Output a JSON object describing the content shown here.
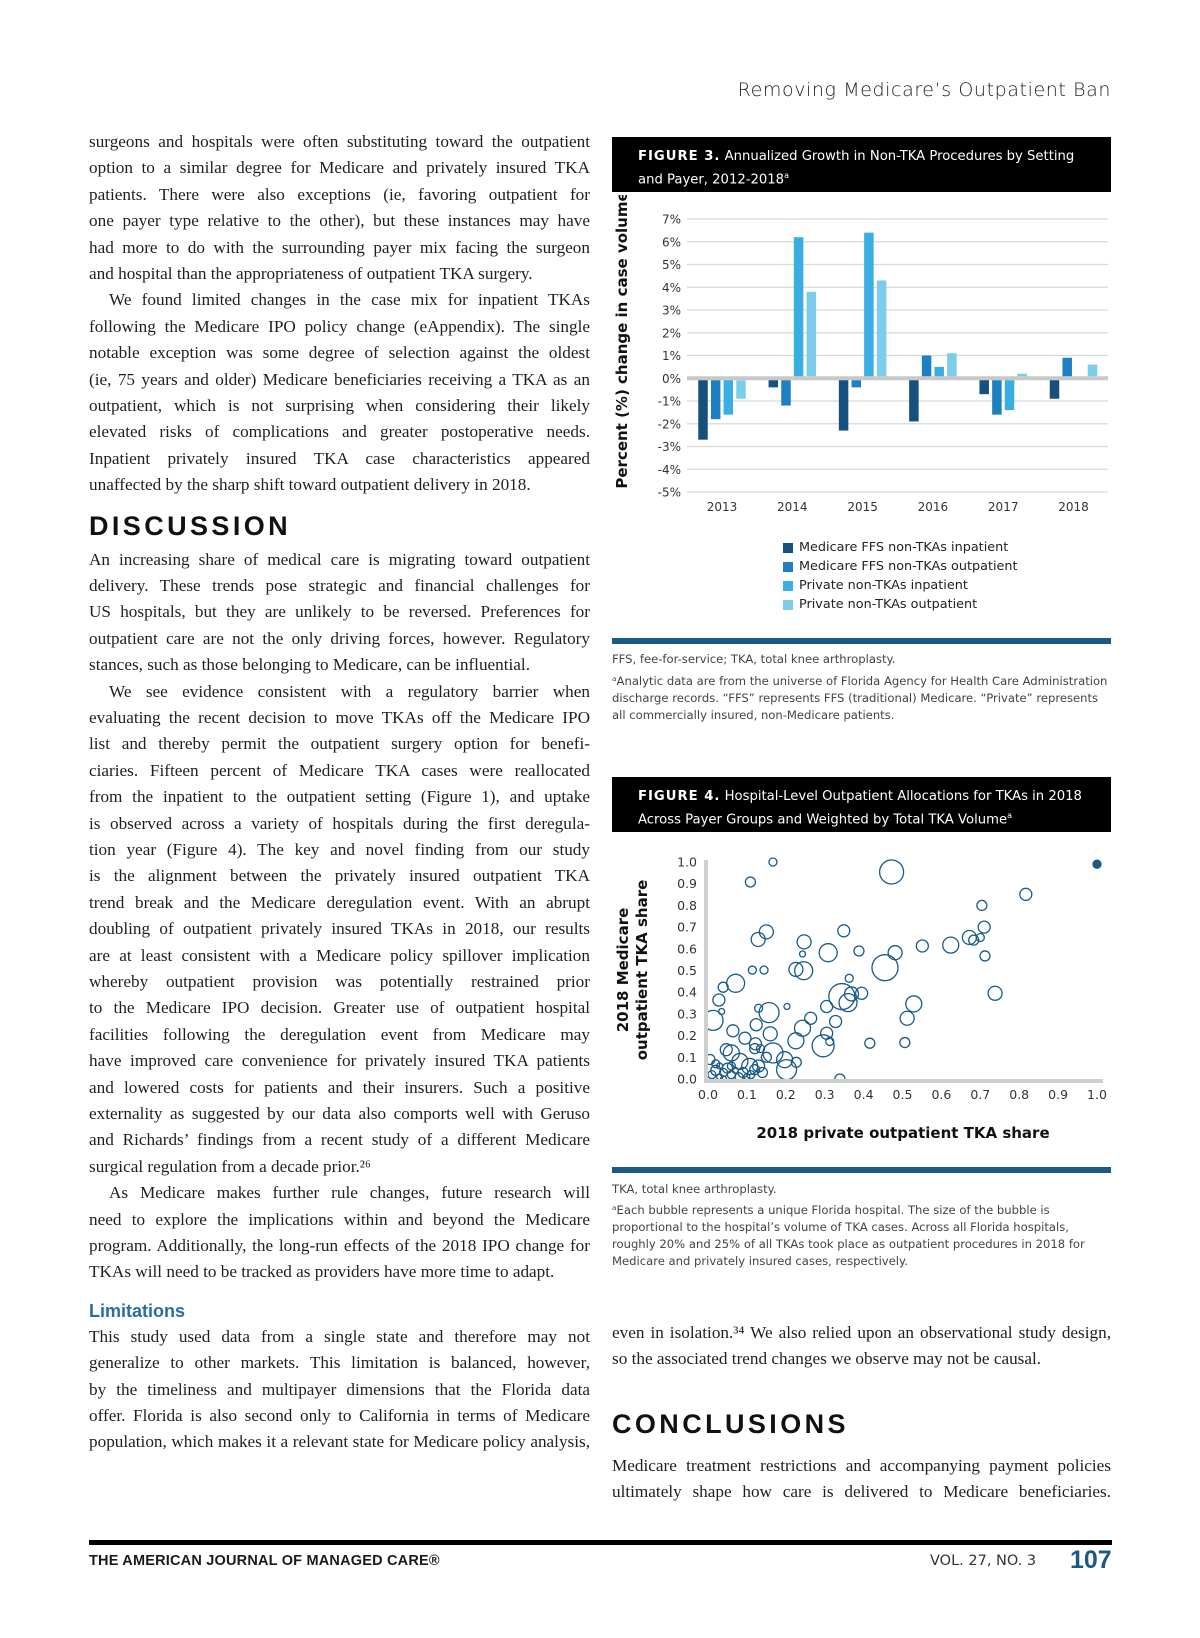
{
  "running_head": "Removing Medicare’s Outpatient Ban",
  "left_column": {
    "blocks": [
      {
        "type": "para",
        "indent": false,
        "continues": false,
        "lines": [
          "surgeons and hospitals were often substituting toward the outpatient",
          "option to a similar degree for Medicare and privately insured TKA",
          "patients. There were also exceptions (ie, favoring outpatient for",
          "one payer type relative to the other), but these instances may have",
          "had more to do with the surrounding payer mix facing the surgeon",
          "and hospital than the appropriateness of outpatient TKA surgery."
        ]
      },
      {
        "type": "para",
        "indent": true,
        "continues": false,
        "lines": [
          "We found limited changes in the case mix for inpatient TKAs",
          "following the Medicare IPO policy change (eAppendix). The single",
          "notable exception was some degree of selection against the oldest",
          "(ie, 75 years and older) Medicare beneficiaries receiving a TKA as an",
          "outpatient, which is not surprising when considering their likely",
          "elevated risks of complications and greater postoperative needs.",
          "Inpatient privately insured TKA case characteristics appeared",
          "unaffected by the sharp shift toward outpatient delivery in 2018."
        ]
      },
      {
        "type": "heading",
        "text": "DISCUSSION"
      },
      {
        "type": "para",
        "indent": false,
        "continues": false,
        "lines": [
          "An increasing share of medical care is migrating toward outpatient",
          "delivery. These trends pose strategic and financial challenges for",
          "US hospitals, but they are unlikely to be reversed. Preferences for",
          "outpatient care are not the only driving forces, however. Regulatory",
          "stances, such as those belonging to Medicare, can be influential."
        ]
      },
      {
        "type": "para",
        "indent": true,
        "continues": false,
        "lines": [
          "We see evidence consistent with a regulatory barrier when",
          "evaluating the recent decision to move TKAs off the Medicare IPO",
          "list and thereby permit the outpatient surgery option for benefi-",
          "ciaries. Fifteen percent of Medicare TKA cases were reallocated",
          "from the inpatient to the outpatient setting (Figure 1), and uptake",
          "is observed across a variety of hospitals during the first deregula-",
          "tion year (Figure 4). The key and novel finding from our study",
          "is the alignment between the privately insured outpatient TKA",
          "trend break and the Medicare deregulation event. With an abrupt",
          "doubling of outpatient privately insured TKAs in 2018, our results",
          "are at least consistent with a Medicare policy spillover implication",
          "whereby outpatient provision was potentially restrained prior",
          "to the Medicare IPO decision. Greater use of outpatient hospital",
          "facilities following the deregulation event from Medicare may",
          "have improved care convenience for privately insured TKA patients",
          "and lowered costs for patients and their insurers. Such a positive",
          "externality as suggested by our data also comports well with Geruso",
          "and Richards’ findings from a recent study of a different Medicare",
          "surgical regulation from a decade prior.²⁶"
        ]
      },
      {
        "type": "para",
        "indent": true,
        "continues": false,
        "lines": [
          "As Medicare makes further rule changes, future research will",
          "need to explore the implications within and beyond the Medicare",
          "program. Additionally, the long-run effects of the 2018 IPO change for",
          "TKAs will need to be tracked as providers have more time to adapt."
        ]
      },
      {
        "type": "subheading",
        "text": "Limitations"
      },
      {
        "type": "para",
        "indent": false,
        "continues": true,
        "lines": [
          "This study used data from a single state and therefore may not",
          "generalize to other markets. This limitation is balanced, however,",
          "by the timeliness and multipayer dimensions that the Florida data",
          "offer. Florida is also second only to California in terms of Medicare",
          "population, which makes it a relevant state for Medicare policy analysis,"
        ]
      }
    ]
  },
  "right_column": {
    "para_continued": [
      "even in isolation.³⁴ We also relied upon an observational study design,",
      "so the associated trend changes we observe may not be causal."
    ],
    "conclusions_heading": "CONCLUSIONS",
    "conclusions_lines": [
      "Medicare treatment restrictions and accompanying payment policies",
      "ultimately shape how care is delivered to Medicare beneficiaries."
    ]
  },
  "figure3": {
    "label": "FIGURE 3.",
    "title": "Annualized Growth in Non-TKA Procedures by Setting and Payer, 2012-2018",
    "title_sup": "a",
    "notes": [
      "FFS, fee-for-service; TKA, total knee arthroplasty.",
      "ᵃAnalytic data are from the universe of Florida Agency for Health Care Administration discharge records. “FFS” represents FFS (traditional) Medicare. “Private” represents all commercially insured, non-Medicare patients."
    ]
  },
  "figure4": {
    "label": "FIGURE 4.",
    "title": "Hospital-Level Outpatient Allocations for TKAs in 2018 Across Payer Groups and Weighted by Total TKA Volume",
    "title_sup": "a",
    "notes": [
      "TKA, total knee arthroplasty.",
      "ᵃEach bubble represents a unique Florida hospital. The size of the bubble is proportional to the hospital’s volume of TKA cases. Across all Florida hospitals, roughly 20% and 25% of all TKAs took place as outpatient procedures in 2018 for Medicare and privately insured cases, respectively."
    ]
  },
  "chart_data": [
    {
      "type": "bar",
      "ylabel": "Percent (%) change in case volume",
      "categories": [
        "2013",
        "2014",
        "2015",
        "2016",
        "2017",
        "2018"
      ],
      "ylim": [
        -5,
        7
      ],
      "yticks": [
        "7%",
        "6%",
        "5%",
        "4%",
        "3%",
        "2%",
        "1%",
        "0%",
        "-1%",
        "-2%",
        "-3%",
        "-4%",
        "-5%"
      ],
      "grid": true,
      "legend_position": "bottom",
      "series": [
        {
          "name": "Medicare FFS non-TKAs inpatient",
          "color": "#16507e",
          "values": [
            -2.7,
            -0.4,
            -2.3,
            -1.9,
            -0.7,
            -0.9
          ]
        },
        {
          "name": "Medicare FFS non-TKAs outpatient",
          "color": "#1e80c0",
          "values": [
            -1.8,
            -1.2,
            -0.4,
            1.0,
            -1.6,
            0.9
          ]
        },
        {
          "name": "Private non-TKAs inpatient",
          "color": "#3aaee2",
          "values": [
            -1.6,
            6.2,
            6.4,
            0.5,
            -1.4,
            0.0
          ]
        },
        {
          "name": "Private non-TKAs outpatient",
          "color": "#7ccdec",
          "values": [
            -0.9,
            3.8,
            4.3,
            1.1,
            0.2,
            0.6
          ]
        }
      ]
    },
    {
      "type": "scatter",
      "subtype": "bubble",
      "xlabel": "2018 private outpatient TKA share",
      "ylabel_lines": [
        "2018 Medicare",
        "outpatient TKA share"
      ],
      "xlim": [
        0,
        1
      ],
      "ylim": [
        0,
        1
      ],
      "xticks": [
        "0.0",
        "0.1",
        "0.2",
        "0.3",
        "0.4",
        "0.5",
        "0.6",
        "0.7",
        "0.8",
        "0.9",
        "1.0"
      ],
      "yticks": [
        "1.0",
        "0.9",
        "0.8",
        "0.7",
        "0.6",
        "0.5",
        "0.4",
        "0.3",
        "0.2",
        "0.1",
        "0.0"
      ],
      "color": "#1b5a85",
      "points_note": "size = relative TKA volume",
      "points": [
        [
          0.167,
          1.0,
          4
        ],
        [
          0.109,
          0.908,
          5
        ],
        [
          0.472,
          0.954,
          12
        ],
        [
          1.0,
          0.99,
          4,
          "filled"
        ],
        [
          0.817,
          0.851,
          6
        ],
        [
          0.704,
          0.8,
          5
        ],
        [
          0.71,
          0.7,
          6
        ],
        [
          0.672,
          0.652,
          7
        ],
        [
          0.683,
          0.64,
          5
        ],
        [
          0.7,
          0.652,
          4
        ],
        [
          0.712,
          0.567,
          5
        ],
        [
          0.624,
          0.617,
          8
        ],
        [
          0.551,
          0.613,
          6
        ],
        [
          0.481,
          0.582,
          7
        ],
        [
          0.455,
          0.513,
          13
        ],
        [
          0.529,
          0.346,
          8
        ],
        [
          0.512,
          0.28,
          7
        ],
        [
          0.506,
          0.168,
          5
        ],
        [
          0.416,
          0.165,
          5
        ],
        [
          0.738,
          0.395,
          7
        ],
        [
          0.349,
          0.683,
          6
        ],
        [
          0.388,
          0.59,
          5
        ],
        [
          0.309,
          0.582,
          9
        ],
        [
          0.247,
          0.632,
          7
        ],
        [
          0.243,
          0.576,
          3
        ],
        [
          0.226,
          0.505,
          7
        ],
        [
          0.246,
          0.499,
          9
        ],
        [
          0.363,
          0.464,
          4
        ],
        [
          0.395,
          0.395,
          6
        ],
        [
          0.344,
          0.38,
          13
        ],
        [
          0.36,
          0.352,
          9
        ],
        [
          0.369,
          0.392,
          7
        ],
        [
          0.305,
          0.334,
          6
        ],
        [
          0.328,
          0.265,
          6
        ],
        [
          0.305,
          0.211,
          6
        ],
        [
          0.296,
          0.153,
          11
        ],
        [
          0.313,
          0.173,
          4
        ],
        [
          0.264,
          0.28,
          6
        ],
        [
          0.243,
          0.234,
          8
        ],
        [
          0.226,
          0.176,
          8
        ],
        [
          0.203,
          0.334,
          3
        ],
        [
          0.15,
          0.678,
          7
        ],
        [
          0.129,
          0.643,
          7
        ],
        [
          0.114,
          0.502,
          4
        ],
        [
          0.144,
          0.502,
          4
        ],
        [
          0.071,
          0.441,
          9
        ],
        [
          0.039,
          0.423,
          5
        ],
        [
          0.028,
          0.364,
          6
        ],
        [
          0.013,
          0.27,
          10
        ],
        [
          0.035,
          0.311,
          3
        ],
        [
          0.064,
          0.222,
          6
        ],
        [
          0.095,
          0.188,
          6
        ],
        [
          0.13,
          0.326,
          4
        ],
        [
          0.157,
          0.306,
          10
        ],
        [
          0.124,
          0.25,
          6
        ],
        [
          0.16,
          0.208,
          7
        ],
        [
          0.122,
          0.162,
          6
        ],
        [
          0.167,
          0.12,
          10
        ],
        [
          0.197,
          0.089,
          8
        ],
        [
          0.202,
          0.043,
          10
        ],
        [
          0.227,
          0.077,
          5
        ],
        [
          0.047,
          0.135,
          6
        ],
        [
          0.06,
          0.12,
          8
        ],
        [
          0.082,
          0.081,
          8
        ],
        [
          0.107,
          0.058,
          8
        ],
        [
          0.12,
          0.043,
          5
        ],
        [
          0.339,
          0.0,
          5
        ],
        [
          0.01,
          0.02,
          4
        ],
        [
          0.02,
          0.04,
          5
        ],
        [
          0.03,
          0.01,
          3
        ],
        [
          0.04,
          0.03,
          4
        ],
        [
          0.05,
          0.05,
          5
        ],
        [
          0.06,
          0.02,
          4
        ],
        [
          0.07,
          0.04,
          3
        ],
        [
          0.08,
          0.01,
          4
        ],
        [
          0.02,
          0.07,
          4
        ],
        [
          0.09,
          0.03,
          5
        ],
        [
          0.03,
          0.06,
          3
        ],
        [
          0.06,
          0.06,
          4
        ],
        [
          0.1,
          0.01,
          3
        ],
        [
          0.005,
          0.09,
          5
        ],
        [
          0.11,
          0.02,
          4
        ],
        [
          0.04,
          0.0,
          3
        ],
        [
          0.14,
          0.03,
          5
        ],
        [
          0.13,
          0.06,
          6
        ],
        [
          0.15,
          0.1,
          5
        ],
        [
          0.12,
          0.14,
          5
        ],
        [
          0.135,
          0.14,
          4
        ]
      ]
    }
  ],
  "footer": {
    "journal": "THE AMERICAN JOURNAL OF MANAGED CARE®",
    "volume": "VOL. 27, NO. 3",
    "page": "107"
  }
}
